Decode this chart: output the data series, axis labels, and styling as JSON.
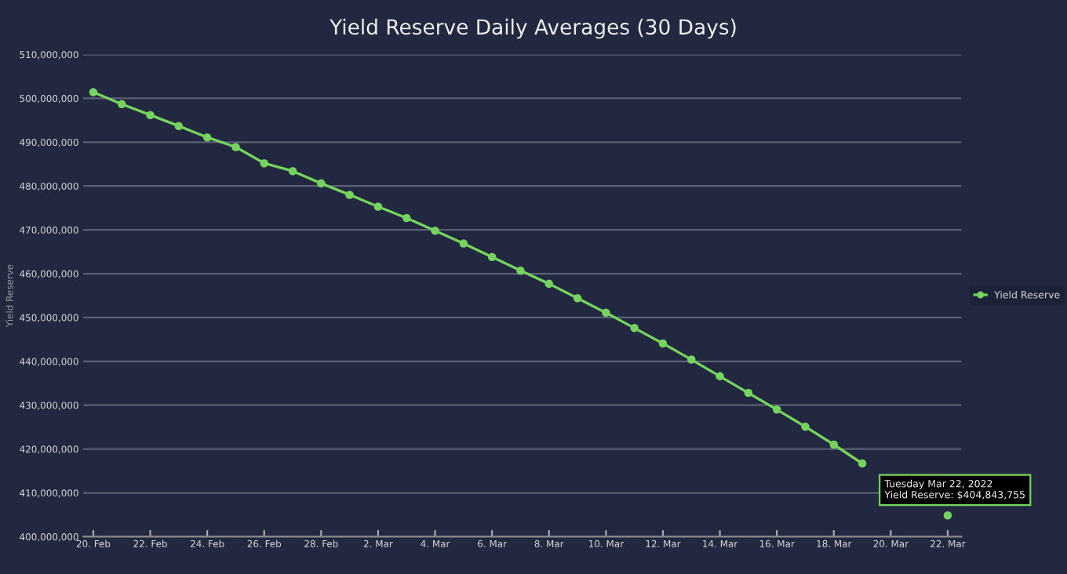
{
  "chart_data": {
    "type": "line",
    "title": "Yield Reserve Daily Averages (30 Days)",
    "ylabel": "Yield Reserve",
    "x": [
      "2022-02-20",
      "2022-02-21",
      "2022-02-22",
      "2022-02-23",
      "2022-02-24",
      "2022-02-25",
      "2022-02-26",
      "2022-02-27",
      "2022-02-28",
      "2022-03-01",
      "2022-03-02",
      "2022-03-03",
      "2022-03-04",
      "2022-03-05",
      "2022-03-06",
      "2022-03-07",
      "2022-03-08",
      "2022-03-09",
      "2022-03-10",
      "2022-03-11",
      "2022-03-12",
      "2022-03-13",
      "2022-03-14",
      "2022-03-15",
      "2022-03-16",
      "2022-03-17",
      "2022-03-18",
      "2022-03-19",
      "2022-03-20",
      "2022-03-21",
      "2022-03-22"
    ],
    "series": [
      {
        "name": "Yield Reserve",
        "color": "#76d35f",
        "values": [
          501400000,
          498700000,
          496200000,
          493700000,
          491100000,
          488900000,
          485200000,
          483400000,
          480600000,
          478000000,
          475300000,
          472700000,
          469800000,
          466900000,
          463800000,
          460700000,
          457700000,
          454400000,
          451100000,
          447600000,
          444100000,
          440400000,
          436600000,
          432800000,
          429000000,
          425100000,
          421000000,
          416700000,
          null,
          null,
          404843755
        ]
      }
    ],
    "annotations": [
      {
        "text": "Tuesday Mar 22, 2022\nYield Reserve: $404,843,755",
        "x": "2022-03-22",
        "y": 404843755
      }
    ],
    "xlim": [
      "2022-02-19T15:30",
      "2022-03-22T11:30"
    ],
    "xticks": [
      {
        "value": "2022-02-20",
        "label": "20. Feb"
      },
      {
        "value": "2022-02-22",
        "label": "22. Feb"
      },
      {
        "value": "2022-02-24",
        "label": "24. Feb"
      },
      {
        "value": "2022-02-26",
        "label": "26. Feb"
      },
      {
        "value": "2022-02-28",
        "label": "28. Feb"
      },
      {
        "value": "2022-03-02",
        "label": "2. Mar"
      },
      {
        "value": "2022-03-04",
        "label": "4. Mar"
      },
      {
        "value": "2022-03-06",
        "label": "6. Mar"
      },
      {
        "value": "2022-03-08",
        "label": "8. Mar"
      },
      {
        "value": "2022-03-10",
        "label": "10. Mar"
      },
      {
        "value": "2022-03-12",
        "label": "12. Mar"
      },
      {
        "value": "2022-03-14",
        "label": "14. Mar"
      },
      {
        "value": "2022-03-16",
        "label": "16. Mar"
      },
      {
        "value": "2022-03-18",
        "label": "18. Mar"
      },
      {
        "value": "2022-03-20",
        "label": "20. Mar"
      },
      {
        "value": "2022-03-22",
        "label": "22. Mar"
      }
    ],
    "ylim": [
      400000000,
      510000000
    ],
    "yticks": [
      {
        "value": 400000000,
        "label": "400,000,000"
      },
      {
        "value": 410000000,
        "label": "410,000,000"
      },
      {
        "value": 420000000,
        "label": "420,000,000"
      },
      {
        "value": 430000000,
        "label": "430,000,000"
      },
      {
        "value": 440000000,
        "label": "440,000,000"
      },
      {
        "value": 450000000,
        "label": "450,000,000"
      },
      {
        "value": 460000000,
        "label": "460,000,000"
      },
      {
        "value": 470000000,
        "label": "470,000,000"
      },
      {
        "value": 480000000,
        "label": "480,000,000"
      },
      {
        "value": 490000000,
        "label": "490,000,000"
      },
      {
        "value": 500000000,
        "label": "500,000,000"
      },
      {
        "value": 510000000,
        "label": "510,000,000"
      }
    ],
    "grid": "y",
    "legend": "right",
    "marker": "circle",
    "line_style": "solid"
  }
}
